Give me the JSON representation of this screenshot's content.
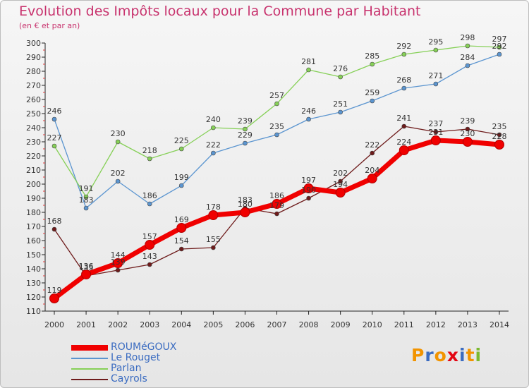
{
  "title": "Evolution des Impôts locaux pour la Commune par Habitant",
  "subtitle": "(en € et par an)",
  "brand": {
    "letters": [
      "P",
      "r",
      "o",
      "x",
      "i",
      "t",
      "i"
    ],
    "colors": [
      "#f29400",
      "#3b6cc1",
      "#f29400",
      "#e30613",
      "#3b6cc1",
      "#f29400",
      "#7bb92f"
    ]
  },
  "chart_data": {
    "type": "line",
    "title": "Evolution des Impôts locaux pour la Commune par Habitant",
    "ylabel": "(en € et par an)",
    "x": [
      "2000",
      "2001",
      "2002",
      "2003",
      "2004",
      "2005",
      "2006",
      "2007",
      "2008",
      "2009",
      "2010",
      "2011",
      "2012",
      "2013",
      "2014"
    ],
    "ylim": [
      110,
      300
    ],
    "yticks": [
      "110",
      "120",
      "130",
      "140",
      "150",
      "160",
      "170",
      "180",
      "190",
      "200",
      "210",
      "220",
      "230",
      "240",
      "250",
      "260",
      "270",
      "280",
      "290",
      "300"
    ],
    "grid": false,
    "legend": "bottom-left",
    "series": [
      {
        "name": "ROUMéGOUX",
        "color": "#f00000",
        "values": [
          119,
          136,
          144,
          157,
          169,
          178,
          180,
          186,
          197,
          194,
          204,
          224,
          231,
          230,
          228
        ],
        "labels": [
          "119",
          "136",
          "144",
          "157",
          "169",
          "178",
          "180",
          "186",
          "197",
          "194",
          "204",
          "224",
          "231",
          "230",
          "228"
        ]
      },
      {
        "name": "Le Rouget",
        "color": "#5b95d0",
        "values": [
          246,
          183,
          202,
          186,
          199,
          222,
          229,
          235,
          246,
          251,
          259,
          268,
          271,
          284,
          292
        ],
        "labels": [
          "246",
          "183",
          "202",
          "186",
          "199",
          "222",
          "229",
          "235",
          "246",
          "251",
          "259",
          "268",
          "271",
          "284",
          "292"
        ]
      },
      {
        "name": "Parlan",
        "color": "#86d057",
        "values": [
          227,
          191,
          230,
          218,
          225,
          240,
          239,
          257,
          281,
          276,
          285,
          292,
          295,
          298,
          297
        ],
        "labels": [
          "227",
          "191",
          "230",
          "218",
          "225",
          "240",
          "239",
          "257",
          "281",
          "276",
          "285",
          "292",
          "295",
          "298",
          "297"
        ]
      },
      {
        "name": "Cayrols",
        "color": "#6e1b1b",
        "values": [
          168,
          135,
          139,
          143,
          154,
          155,
          183,
          179,
          190,
          202,
          222,
          241,
          237,
          239,
          235
        ],
        "labels": [
          "168",
          "135",
          "139",
          "143",
          "154",
          "155",
          "183",
          "179",
          "190",
          "202",
          "222",
          "241",
          "237",
          "239",
          "235"
        ]
      }
    ]
  }
}
